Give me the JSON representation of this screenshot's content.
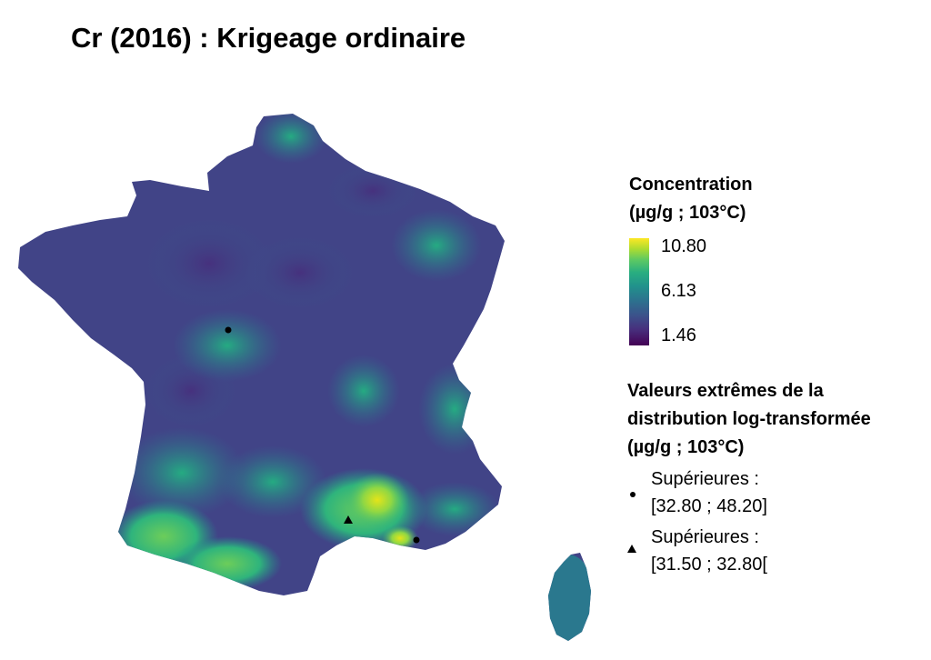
{
  "title": "Cr (2016) : Krigeage ordinaire",
  "map": {
    "markers": [
      {
        "shape": "circle",
        "name": "marker-upper-circle-1"
      },
      {
        "shape": "circle",
        "name": "marker-upper-circle-2"
      },
      {
        "shape": "triangle",
        "name": "marker-upper-triangle-1"
      }
    ],
    "colors": {
      "low": "#440154",
      "mid": "#21918c",
      "high": "#fde725",
      "marker": "#000000"
    }
  },
  "legend": {
    "concentration": {
      "title_line1": "Concentration",
      "title_line2": "(µg/g ; 103°C)",
      "ticks": [
        "10.80",
        "6.13",
        "1.46"
      ],
      "range": [
        1.46,
        10.8
      ],
      "colormap": "viridis"
    },
    "extremes": {
      "title_line1": "Valeurs extrêmes de la",
      "title_line2": "distribution log-transformée",
      "title_line3": "(µg/g ; 103°C)",
      "items": [
        {
          "symbol": "circle-icon",
          "label_line1": "Supérieures :",
          "label_line2": "[32.80 ; 48.20]"
        },
        {
          "symbol": "triangle-icon",
          "label_line1": "Supérieures :",
          "label_line2": "[31.50 ; 32.80["
        }
      ]
    }
  }
}
